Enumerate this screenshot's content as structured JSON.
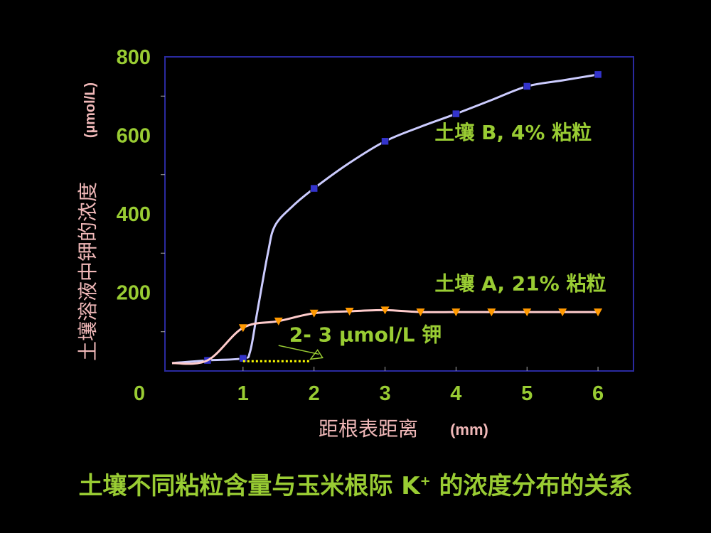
{
  "colors": {
    "background": "#000000",
    "frame": "#2a2aa0",
    "tick_label": "#99cc33",
    "axis_title": "#f0b8b8",
    "series_B": "#ccccff",
    "series_B_marker": "#3333cc",
    "series_A": "#ffcccc",
    "series_A_marker": "#ff9900",
    "dotted": "#ffff00",
    "annotation": "#99cc33"
  },
  "chart_data": {
    "type": "line",
    "ylabel_main": "土壤溶液中钾的浓度",
    "ylabel_unit": "(µmol/L)",
    "xlabel_main": "距根表距离",
    "xlabel_unit": "(mm)",
    "xlim": [
      -0.1,
      6.5
    ],
    "ylim": [
      0,
      800
    ],
    "x_ticks": [
      0,
      1,
      2,
      3,
      4,
      5,
      6
    ],
    "y_ticks": [
      200,
      400,
      600,
      800
    ],
    "grid": false,
    "series": [
      {
        "name": "土壤 B, 4% 粘粒",
        "marker": "square",
        "curve": [
          [
            0,
            20
          ],
          [
            0.5,
            27
          ],
          [
            1,
            32
          ],
          [
            1.1,
            50
          ],
          [
            1.2,
            150
          ],
          [
            1.35,
            300
          ],
          [
            1.45,
            370
          ],
          [
            1.7,
            420
          ],
          [
            2,
            465
          ],
          [
            2.5,
            530
          ],
          [
            3,
            585
          ],
          [
            3.5,
            622
          ],
          [
            4,
            655
          ],
          [
            4.5,
            690
          ],
          [
            5,
            725
          ],
          [
            5.5,
            740
          ],
          [
            6,
            755
          ]
        ],
        "points": [
          [
            0.5,
            27
          ],
          [
            1,
            32
          ],
          [
            2,
            465
          ],
          [
            3,
            585
          ],
          [
            4,
            655
          ],
          [
            5,
            725
          ],
          [
            6,
            755
          ]
        ]
      },
      {
        "name": "土壤 A, 21% 粘粒",
        "marker": "triangle-down",
        "curve": [
          [
            0,
            20
          ],
          [
            0.5,
            27
          ],
          [
            1,
            110
          ],
          [
            1.5,
            127
          ],
          [
            2,
            147
          ],
          [
            2.5,
            152
          ],
          [
            3,
            155
          ],
          [
            3.5,
            150
          ],
          [
            4,
            150
          ],
          [
            4.5,
            150
          ],
          [
            5,
            150
          ],
          [
            5.5,
            150
          ],
          [
            6,
            150
          ]
        ],
        "points": [
          [
            1,
            110
          ],
          [
            1.5,
            127
          ],
          [
            2,
            147
          ],
          [
            2.5,
            152
          ],
          [
            3,
            155
          ],
          [
            3.5,
            150
          ],
          [
            4,
            150
          ],
          [
            4.5,
            150
          ],
          [
            5,
            150
          ],
          [
            5.5,
            150
          ],
          [
            6,
            150
          ]
        ]
      }
    ],
    "annotations": [
      {
        "text": "土壤 B, 4% 粘粒",
        "x": 3.7,
        "y": 590
      },
      {
        "text": "土壤 A, 21% 粘粒",
        "x": 3.7,
        "y": 205
      },
      {
        "text": "2- 3 µmol/L 钾",
        "x": 1.65,
        "y": 75
      }
    ],
    "dotted_segment": {
      "x_from": 1.0,
      "x_to": 1.95,
      "y": 25
    },
    "arrow": {
      "from": [
        1.5,
        65
      ],
      "to": [
        1.95,
        30
      ]
    }
  },
  "caption": {
    "before": "土壤不同粘粒含量与玉米根际 K",
    "sup": "+",
    "after": " 的浓度分布的关系"
  }
}
